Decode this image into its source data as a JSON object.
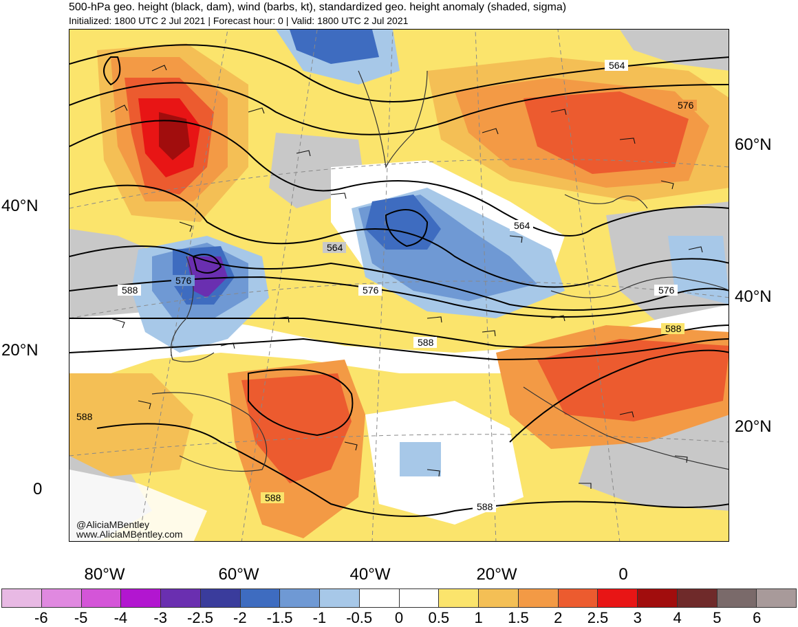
{
  "header": {
    "title": "500-hPa geo. height (black, dam), wind (barbs, kt), standardized geo. height anomaly (shaded, sigma)",
    "subtitle": "Initialized: 1800 UTC 2 Jul 2021 | Forecast hour: 0 | Valid: 1800 UTC 2 Jul 2021"
  },
  "credits": {
    "handle": "@AliciaMBentley",
    "website": "www.AliciaMBentley.com"
  },
  "axes": {
    "lat_left": [
      "40°N",
      "20°N",
      "0"
    ],
    "lat_right": [
      "60°N",
      "40°N",
      "20°N"
    ],
    "lon_bottom": [
      "80°W",
      "60°W",
      "40°W",
      "20°W",
      "0"
    ]
  },
  "contour_labels": [
    "564",
    "576",
    "564",
    "564",
    "576",
    "588",
    "576",
    "576",
    "588",
    "588",
    "588",
    "588",
    "588"
  ],
  "colorbar": {
    "colors": [
      "#e8b9e4",
      "#e089e0",
      "#d455d8",
      "#b216d0",
      "#6a2fb0",
      "#3a3c9c",
      "#3e6cc0",
      "#6f99d4",
      "#a7c8e8",
      "#ffffff",
      "#ffffff",
      "#fbe46c",
      "#f4bf55",
      "#f39a45",
      "#ec5b2f",
      "#e81515",
      "#a10d0d",
      "#6f2a2a",
      "#7a6a6a",
      "#a89a9a"
    ],
    "ticks": [
      "-6",
      "-5",
      "-4",
      "-3",
      "-2.5",
      "-2",
      "-1.5",
      "-1",
      "-0.5",
      "0",
      "0.5",
      "1",
      "1.5",
      "2",
      "2.5",
      "3",
      "4",
      "5",
      "6"
    ]
  }
}
